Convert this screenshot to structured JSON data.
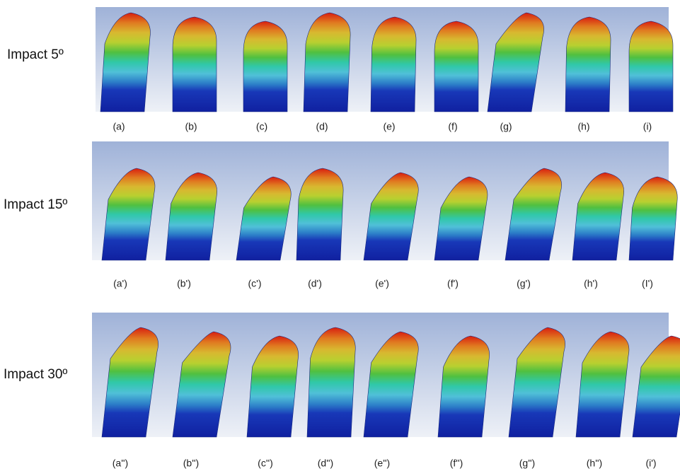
{
  "rows": [
    {
      "label": "Impact 5º",
      "captions": [
        "(a)",
        "(b)",
        "(c)",
        "(d)",
        "(e)",
        "(f)",
        "(g)",
        "(h)",
        "(i)"
      ]
    },
    {
      "label": "Impact 15º",
      "captions": [
        "(a')",
        "(b')",
        "(c')",
        "(d')",
        "(e')",
        "(f')",
        "(g')",
        "(h')",
        "(I')"
      ]
    },
    {
      "label": "Impact 30º",
      "captions": [
        "(a'')",
        "(b'')",
        "(c'')",
        "(d'')",
        "(e'')",
        "(f'')",
        "(g'')",
        "(h'')",
        "(i')"
      ]
    }
  ]
}
